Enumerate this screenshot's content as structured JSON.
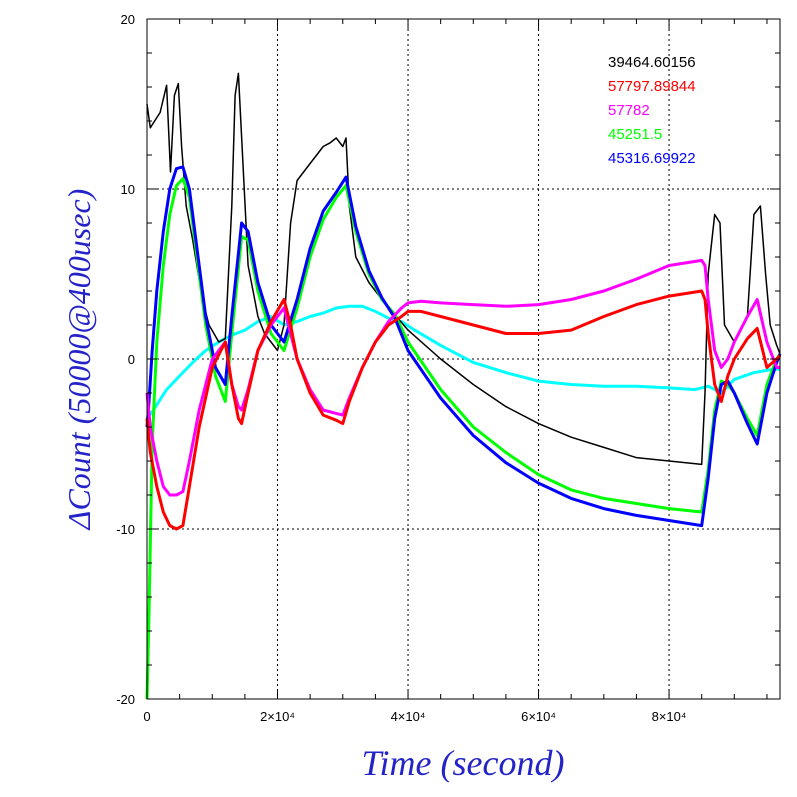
{
  "chart_data": {
    "type": "line",
    "title": "",
    "xlabel": "Time (second)",
    "ylabel": "ΔCount (50000@400usec)",
    "xlim": [
      0,
      97000
    ],
    "ylim": [
      -20,
      20
    ],
    "grid": true,
    "legend_placement": "top-right",
    "x_ticks": [
      {
        "value": 0,
        "label": "0"
      },
      {
        "value": 20000,
        "label": "2×10⁴"
      },
      {
        "value": 40000,
        "label": "4×10⁴"
      },
      {
        "value": 60000,
        "label": "6×10⁴"
      },
      {
        "value": 80000,
        "label": "8×10⁴"
      }
    ],
    "y_ticks": [
      {
        "value": -20,
        "label": "-20"
      },
      {
        "value": -10,
        "label": "-10"
      },
      {
        "value": 0,
        "label": "0"
      },
      {
        "value": 10,
        "label": "10"
      },
      {
        "value": 20,
        "label": "20"
      }
    ],
    "series": [
      {
        "name": "39464.60156",
        "color": "#000000",
        "x": [
          0,
          500,
          2000,
          3000,
          3600,
          4200,
          4800,
          5300,
          6000,
          7000,
          8500,
          9500,
          11000,
          12000,
          13000,
          13500,
          14000,
          15500,
          16500,
          17000,
          18000,
          19000,
          20000,
          21000,
          22000,
          23000,
          24000,
          25000,
          26000,
          27000,
          28000,
          29000,
          30000,
          30500,
          31000,
          32000,
          34000,
          36000,
          38000,
          40000,
          45000,
          50000,
          55000,
          60000,
          65000,
          70000,
          75000,
          80000,
          85000,
          85500,
          86000,
          87000,
          87800,
          88500,
          90000,
          92000,
          93000,
          94000,
          94800,
          95500,
          96500,
          97000
        ],
        "y": [
          15,
          13.6,
          14.5,
          16.1,
          11.0,
          15.5,
          16.2,
          12.5,
          9.0,
          7.0,
          3.5,
          2.0,
          1.0,
          1.2,
          9.0,
          15.5,
          16.8,
          5.5,
          3.5,
          2.5,
          1.5,
          1.0,
          0.5,
          2.0,
          8.0,
          10.5,
          11.0,
          11.5,
          12.0,
          12.5,
          12.7,
          13.0,
          12.5,
          13.0,
          9.0,
          6.0,
          4.5,
          3.5,
          2.6,
          1.7,
          0.0,
          -1.5,
          -2.8,
          -3.8,
          -4.6,
          -5.2,
          -5.8,
          -6.0,
          -6.2,
          -2.0,
          5.0,
          8.5,
          8.0,
          2.0,
          1.0,
          2.5,
          8.5,
          9.0,
          5.0,
          2.0,
          0.8,
          0.3
        ]
      },
      {
        "name": "57797.89844",
        "color": "#ff0000",
        "x": [
          0,
          500,
          1500,
          2500,
          3500,
          4500,
          5500,
          6500,
          8000,
          10000,
          12000,
          13000,
          14000,
          14500,
          15500,
          17000,
          19000,
          21000,
          22000,
          23000,
          25000,
          27000,
          29000,
          30000,
          31000,
          33000,
          35000,
          37000,
          39000,
          40000,
          42000,
          45000,
          50000,
          55000,
          60000,
          65000,
          70000,
          75000,
          80000,
          85000,
          85500,
          86000,
          87000,
          88000,
          89000,
          90000,
          92000,
          93500,
          95000,
          96500,
          97000
        ],
        "y": [
          -3.5,
          -5.5,
          -7.5,
          -9.0,
          -9.8,
          -10.0,
          -9.8,
          -7.5,
          -4.0,
          -0.5,
          1.0,
          -1.5,
          -3.5,
          -3.8,
          -2.0,
          0.5,
          2.2,
          3.5,
          2.0,
          0.0,
          -2.0,
          -3.3,
          -3.6,
          -3.8,
          -2.5,
          -0.5,
          1.0,
          2.0,
          2.5,
          2.8,
          2.8,
          2.5,
          2.0,
          1.5,
          1.5,
          1.7,
          2.5,
          3.2,
          3.7,
          4.0,
          3.5,
          1.5,
          -1.5,
          -2.5,
          -1.0,
          0.0,
          1.2,
          1.8,
          -0.5,
          0.0,
          0.2
        ]
      },
      {
        "name": "57782",
        "color": "#ff00ff",
        "x": [
          0,
          500,
          1500,
          2500,
          3500,
          4500,
          5500,
          6500,
          8000,
          10000,
          12000,
          13000,
          14000,
          14500,
          15500,
          17000,
          19000,
          21000,
          22000,
          23000,
          25000,
          27000,
          29000,
          30000,
          31000,
          33000,
          35000,
          37000,
          39000,
          40000,
          42000,
          45000,
          50000,
          55000,
          60000,
          65000,
          70000,
          75000,
          80000,
          85000,
          85500,
          86000,
          87000,
          88000,
          89000,
          90000,
          92000,
          93500,
          95000,
          96500,
          97000
        ],
        "y": [
          -2.0,
          -4.0,
          -6.0,
          -7.5,
          -8.0,
          -8.0,
          -7.8,
          -6.0,
          -3.0,
          0.0,
          1.0,
          -1.5,
          -2.8,
          -3.0,
          -1.8,
          0.5,
          2.0,
          3.0,
          1.5,
          0.0,
          -1.8,
          -3.0,
          -3.2,
          -3.3,
          -2.3,
          -0.5,
          1.0,
          2.2,
          3.0,
          3.3,
          3.4,
          3.3,
          3.2,
          3.1,
          3.2,
          3.5,
          4.0,
          4.7,
          5.5,
          5.8,
          5.5,
          3.5,
          0.5,
          -0.5,
          0.0,
          1.0,
          2.5,
          3.5,
          1.0,
          -0.5,
          -0.5
        ]
      },
      {
        "name": "45251.5",
        "color": "#00ff00",
        "x": [
          0,
          300,
          800,
          1500,
          2500,
          3500,
          4500,
          5500,
          6500,
          7500,
          9000,
          10500,
          12000,
          13000,
          14500,
          15500,
          17000,
          19000,
          21000,
          23000,
          25000,
          27000,
          29000,
          30500,
          32000,
          34000,
          36000,
          38000,
          40000,
          45000,
          50000,
          55000,
          60000,
          65000,
          70000,
          75000,
          80000,
          85000,
          86000,
          87000,
          88000,
          89000,
          90000,
          92000,
          93500,
          95000,
          96500,
          97000
        ],
        "y": [
          -20,
          -15,
          -5,
          1.0,
          5.5,
          8.5,
          10.2,
          10.6,
          9.5,
          6.5,
          2.0,
          -1.0,
          -2.5,
          1.5,
          7.2,
          7.0,
          4.0,
          1.5,
          0.5,
          3.0,
          6.0,
          8.2,
          9.5,
          10.2,
          7.5,
          5.0,
          3.5,
          2.6,
          1.0,
          -1.8,
          -4.0,
          -5.5,
          -6.8,
          -7.7,
          -8.2,
          -8.5,
          -8.8,
          -9.0,
          -6.5,
          -3.0,
          -1.3,
          -1.5,
          -2.0,
          -3.5,
          -4.5,
          -1.5,
          0.0,
          0.3
        ]
      },
      {
        "name": "45316.69922",
        "color": "#0000ff",
        "x": [
          0,
          300,
          800,
          1500,
          2500,
          3500,
          4500,
          5500,
          6500,
          7500,
          9000,
          10500,
          12000,
          13000,
          14500,
          15500,
          17000,
          19000,
          21000,
          23000,
          25000,
          27000,
          29000,
          30500,
          32000,
          34000,
          36000,
          38000,
          40000,
          45000,
          50000,
          55000,
          60000,
          65000,
          70000,
          75000,
          80000,
          85000,
          86000,
          87000,
          88000,
          89000,
          90000,
          92000,
          93500,
          95000,
          96500,
          97000
        ],
        "y": [
          -4,
          -2.5,
          0.5,
          4.0,
          7.5,
          10.0,
          11.2,
          11.3,
          10.0,
          7.0,
          2.5,
          -0.5,
          -1.5,
          2.5,
          8.0,
          7.5,
          4.5,
          2.0,
          1.0,
          3.5,
          6.5,
          8.7,
          9.8,
          10.7,
          7.8,
          5.2,
          3.6,
          2.4,
          0.5,
          -2.3,
          -4.5,
          -6.1,
          -7.3,
          -8.2,
          -8.8,
          -9.2,
          -9.5,
          -9.8,
          -7.0,
          -3.5,
          -1.5,
          -1.3,
          -2.0,
          -3.8,
          -5.0,
          -2.0,
          -0.2,
          0.3
        ]
      },
      {
        "name": "",
        "color": "#00ffff",
        "x": [
          0,
          1000,
          3000,
          5000,
          7000,
          9000,
          11000,
          13000,
          15000,
          17000,
          19000,
          21000,
          23000,
          25000,
          27000,
          29000,
          31000,
          33000,
          35000,
          37000,
          39000,
          41000,
          45000,
          50000,
          55000,
          60000,
          65000,
          70000,
          75000,
          80000,
          84000,
          86000,
          88000,
          90000,
          93000,
          96000,
          97000
        ],
        "y": [
          -3.5,
          -3.0,
          -1.8,
          -1.0,
          -0.2,
          0.5,
          1.0,
          1.4,
          1.7,
          2.2,
          2.5,
          2.0,
          2.2,
          2.5,
          2.7,
          3.0,
          3.1,
          3.1,
          2.8,
          2.4,
          2.2,
          1.7,
          0.8,
          -0.2,
          -0.8,
          -1.3,
          -1.5,
          -1.6,
          -1.6,
          -1.7,
          -1.8,
          -1.6,
          -2.0,
          -1.2,
          -0.8,
          -0.6,
          -0.6
        ]
      }
    ],
    "legend": [
      {
        "label": "39464.60156",
        "color": "#000000"
      },
      {
        "label": "57797.89844",
        "color": "#ff0000"
      },
      {
        "label": "57782",
        "color": "#ff00ff"
      },
      {
        "label": "45251.5",
        "color": "#00ff00"
      },
      {
        "label": "45316.69922",
        "color": "#0000ff"
      }
    ]
  }
}
